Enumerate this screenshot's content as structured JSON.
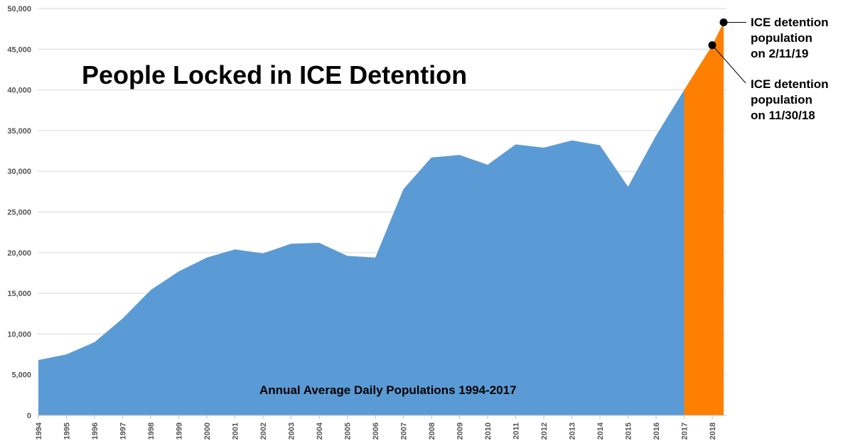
{
  "chart_data": {
    "type": "area",
    "title": "People Locked in ICE Detention",
    "subtitle": "Annual Average Daily Populations 1994-2017",
    "xlabel": "",
    "ylabel": "",
    "ylim": [
      0,
      50000
    ],
    "y_ticks": [
      0,
      5000,
      10000,
      15000,
      20000,
      25000,
      30000,
      35000,
      40000,
      45000,
      50000
    ],
    "y_tick_labels": [
      "0",
      "5,000",
      "10,000",
      "15,000",
      "20,000",
      "25,000",
      "30,000",
      "35,000",
      "40,000",
      "45,000",
      "50,000"
    ],
    "categories": [
      "1994",
      "1995",
      "1996",
      "1997",
      "1998",
      "1999",
      "2000",
      "2001",
      "2002",
      "2003",
      "2004",
      "2005",
      "2006",
      "2007",
      "2008",
      "2009",
      "2010",
      "2011",
      "2012",
      "2013",
      "2014",
      "2015",
      "2016",
      "2017",
      "2018"
    ],
    "grid": true,
    "series": [
      {
        "color": "#5b9bd5",
        "points": [
          {
            "x": "1994",
            "y": 6800
          },
          {
            "x": "1995",
            "y": 7500
          },
          {
            "x": "1996",
            "y": 9000
          },
          {
            "x": "1997",
            "y": 11900
          },
          {
            "x": "1998",
            "y": 15400
          },
          {
            "x": "1999",
            "y": 17700
          },
          {
            "x": "2000",
            "y": 19400
          },
          {
            "x": "2001",
            "y": 20400
          },
          {
            "x": "2002",
            "y": 19900
          },
          {
            "x": "2003",
            "y": 21100
          },
          {
            "x": "2004",
            "y": 21200
          },
          {
            "x": "2005",
            "y": 19600
          },
          {
            "x": "2006",
            "y": 19400
          },
          {
            "x": "2007",
            "y": 27800
          },
          {
            "x": "2008",
            "y": 31700
          },
          {
            "x": "2009",
            "y": 32000
          },
          {
            "x": "2010",
            "y": 30800
          },
          {
            "x": "2011",
            "y": 33300
          },
          {
            "x": "2012",
            "y": 32900
          },
          {
            "x": "2013",
            "y": 33800
          },
          {
            "x": "2014",
            "y": 33200
          },
          {
            "x": "2015",
            "y": 28100
          },
          {
            "x": "2016",
            "y": 34400
          },
          {
            "x": "2017",
            "y": 40000
          }
        ]
      },
      {
        "color": "#ff7f00",
        "points": [
          {
            "x": "2017",
            "y": 40000
          },
          {
            "x": "2018",
            "y": 45500
          },
          {
            "x": "2018+",
            "y": 48300
          }
        ]
      }
    ],
    "annotations": [
      {
        "label_lines": [
          "ICE detention",
          "population",
          "on 2/11/19"
        ],
        "x": "2018+",
        "y": 48300
      },
      {
        "label_lines": [
          "ICE detention",
          "population",
          "on 11/30/18"
        ],
        "x": "2018",
        "y": 45500
      }
    ]
  }
}
